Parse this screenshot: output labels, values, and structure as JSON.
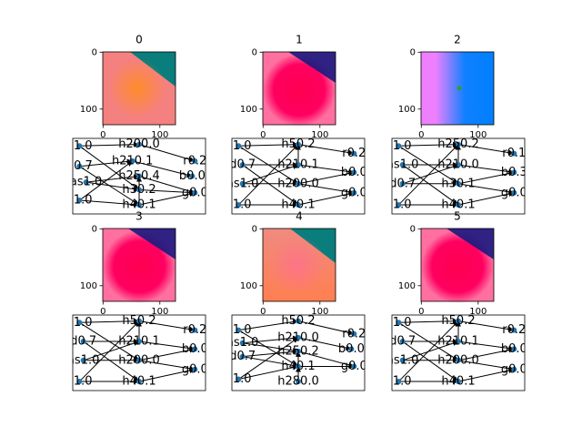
{
  "panels": [
    {
      "title": "0",
      "xticks": [
        0,
        100
      ],
      "yticks": [
        0,
        100
      ],
      "nodes": [
        "x1.0",
        "h200.0",
        "d0.7",
        "h210.1",
        "r0.2",
        "b0.0",
        "as1.0",
        "h250.4",
        "h30.2",
        "g0.0",
        "y1.0",
        "h40.1"
      ]
    },
    {
      "title": "1",
      "xticks": [
        0,
        100
      ],
      "yticks": [
        0,
        100
      ],
      "nodes": [
        "x1.0",
        "h50.2",
        "r0.2",
        "d0.7",
        "h210.1",
        "b0.0",
        "as1.0",
        "h200.0",
        "g0.0",
        "y1.0",
        "h40.1"
      ]
    },
    {
      "title": "2",
      "xticks": [
        0,
        100
      ],
      "yticks": [
        0,
        100
      ],
      "nodes": [
        "x1.0",
        "h250.2",
        "r0.1",
        "as1.0",
        "h210.0",
        "b0.3",
        "d0.7",
        "h30.1",
        "g0.0",
        "y1.0",
        "h40.1"
      ]
    },
    {
      "title": "3",
      "xticks": [
        0,
        100
      ],
      "yticks": [
        0,
        100
      ],
      "nodes": [
        "x1.0",
        "h50.2",
        "r0.2",
        "d0.7",
        "h210.1",
        "b0.0",
        "as1.0",
        "h200.0",
        "g0.0",
        "y1.0",
        "h40.1"
      ]
    },
    {
      "title": "4",
      "xticks": [
        0,
        100
      ],
      "yticks": [
        0,
        100
      ],
      "nodes": [
        "x1.0",
        "h50.2",
        "r0.2",
        "as1.0",
        "h210.0",
        "d0.7",
        "h250.2",
        "b0.0",
        "y1.0",
        "h40.1",
        "g0.0",
        "h280.0"
      ]
    },
    {
      "title": "5",
      "xticks": [
        0,
        100
      ],
      "yticks": [
        0,
        100
      ],
      "nodes": [
        "x1.0",
        "h50.2",
        "r0.2",
        "d0.7",
        "h210.1",
        "b0.0",
        "as1.0",
        "h200.0",
        "g0.0",
        "y1.0",
        "h40.1"
      ]
    }
  ]
}
